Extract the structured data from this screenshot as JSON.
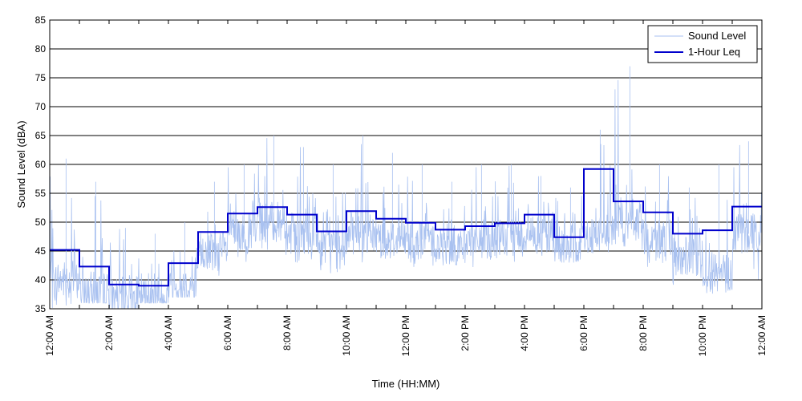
{
  "chart_data": {
    "type": "line",
    "title": "",
    "xlabel": "Time (HH:MM)",
    "ylabel": "Sound Level (dBA)",
    "ylim": [
      35,
      85
    ],
    "yticks": [
      35,
      40,
      45,
      50,
      55,
      60,
      65,
      70,
      75,
      80,
      85
    ],
    "xlim_hours": [
      0,
      24
    ],
    "xticks": [
      {
        "hour": 0,
        "label": "12:00 AM"
      },
      {
        "hour": 2,
        "label": "2:00 AM"
      },
      {
        "hour": 4,
        "label": "4:00 AM"
      },
      {
        "hour": 6,
        "label": "6:00 AM"
      },
      {
        "hour": 8,
        "label": "8:00 AM"
      },
      {
        "hour": 10,
        "label": "10:00 AM"
      },
      {
        "hour": 12,
        "label": "12:00 PM"
      },
      {
        "hour": 14,
        "label": "2:00 PM"
      },
      {
        "hour": 16,
        "label": "4:00 PM"
      },
      {
        "hour": 18,
        "label": "6:00 PM"
      },
      {
        "hour": 20,
        "label": "8:00 PM"
      },
      {
        "hour": 22,
        "label": "10:00 PM"
      },
      {
        "hour": 24,
        "label": "12:00 AM"
      }
    ],
    "grid": {
      "horizontal": true,
      "vertical": false
    },
    "legend": {
      "placement": "top-right"
    },
    "series": [
      {
        "name": "Sound Level",
        "color": "#a9c1f0",
        "hourly_typical": [
          40,
          38,
          37,
          37,
          39,
          45,
          48,
          50,
          48,
          46,
          48,
          47,
          47,
          46,
          47,
          47,
          48,
          46,
          48,
          50,
          47,
          44,
          41,
          48
        ],
        "hourly_range": [
          [
            35,
            61
          ],
          [
            36,
            57
          ],
          [
            35,
            49
          ],
          [
            36,
            48
          ],
          [
            37,
            50
          ],
          [
            40,
            57
          ],
          [
            43,
            60
          ],
          [
            44,
            65
          ],
          [
            42,
            63
          ],
          [
            41,
            60
          ],
          [
            43,
            65
          ],
          [
            43,
            62
          ],
          [
            42,
            60
          ],
          [
            41,
            57
          ],
          [
            42,
            60
          ],
          [
            43,
            60
          ],
          [
            43,
            58
          ],
          [
            43,
            56
          ],
          [
            44,
            66
          ],
          [
            45,
            77
          ],
          [
            42,
            60
          ],
          [
            39,
            56
          ],
          [
            37,
            60
          ],
          [
            40,
            64
          ]
        ]
      },
      {
        "name": "1-Hour Leq",
        "color": "#0000cc",
        "type": "step",
        "hour_starts": [
          0,
          1,
          2,
          3,
          4,
          5,
          6,
          7,
          8,
          9,
          10,
          11,
          12,
          13,
          14,
          15,
          16,
          17,
          18,
          19,
          20,
          21,
          22,
          23
        ],
        "values": [
          45.2,
          42.3,
          39.2,
          39.0,
          42.9,
          48.3,
          51.5,
          52.6,
          51.3,
          48.4,
          51.9,
          50.6,
          49.9,
          48.7,
          49.3,
          49.8,
          51.3,
          47.4,
          59.2,
          53.6,
          51.7,
          48.0,
          48.6,
          52.7
        ]
      }
    ]
  }
}
